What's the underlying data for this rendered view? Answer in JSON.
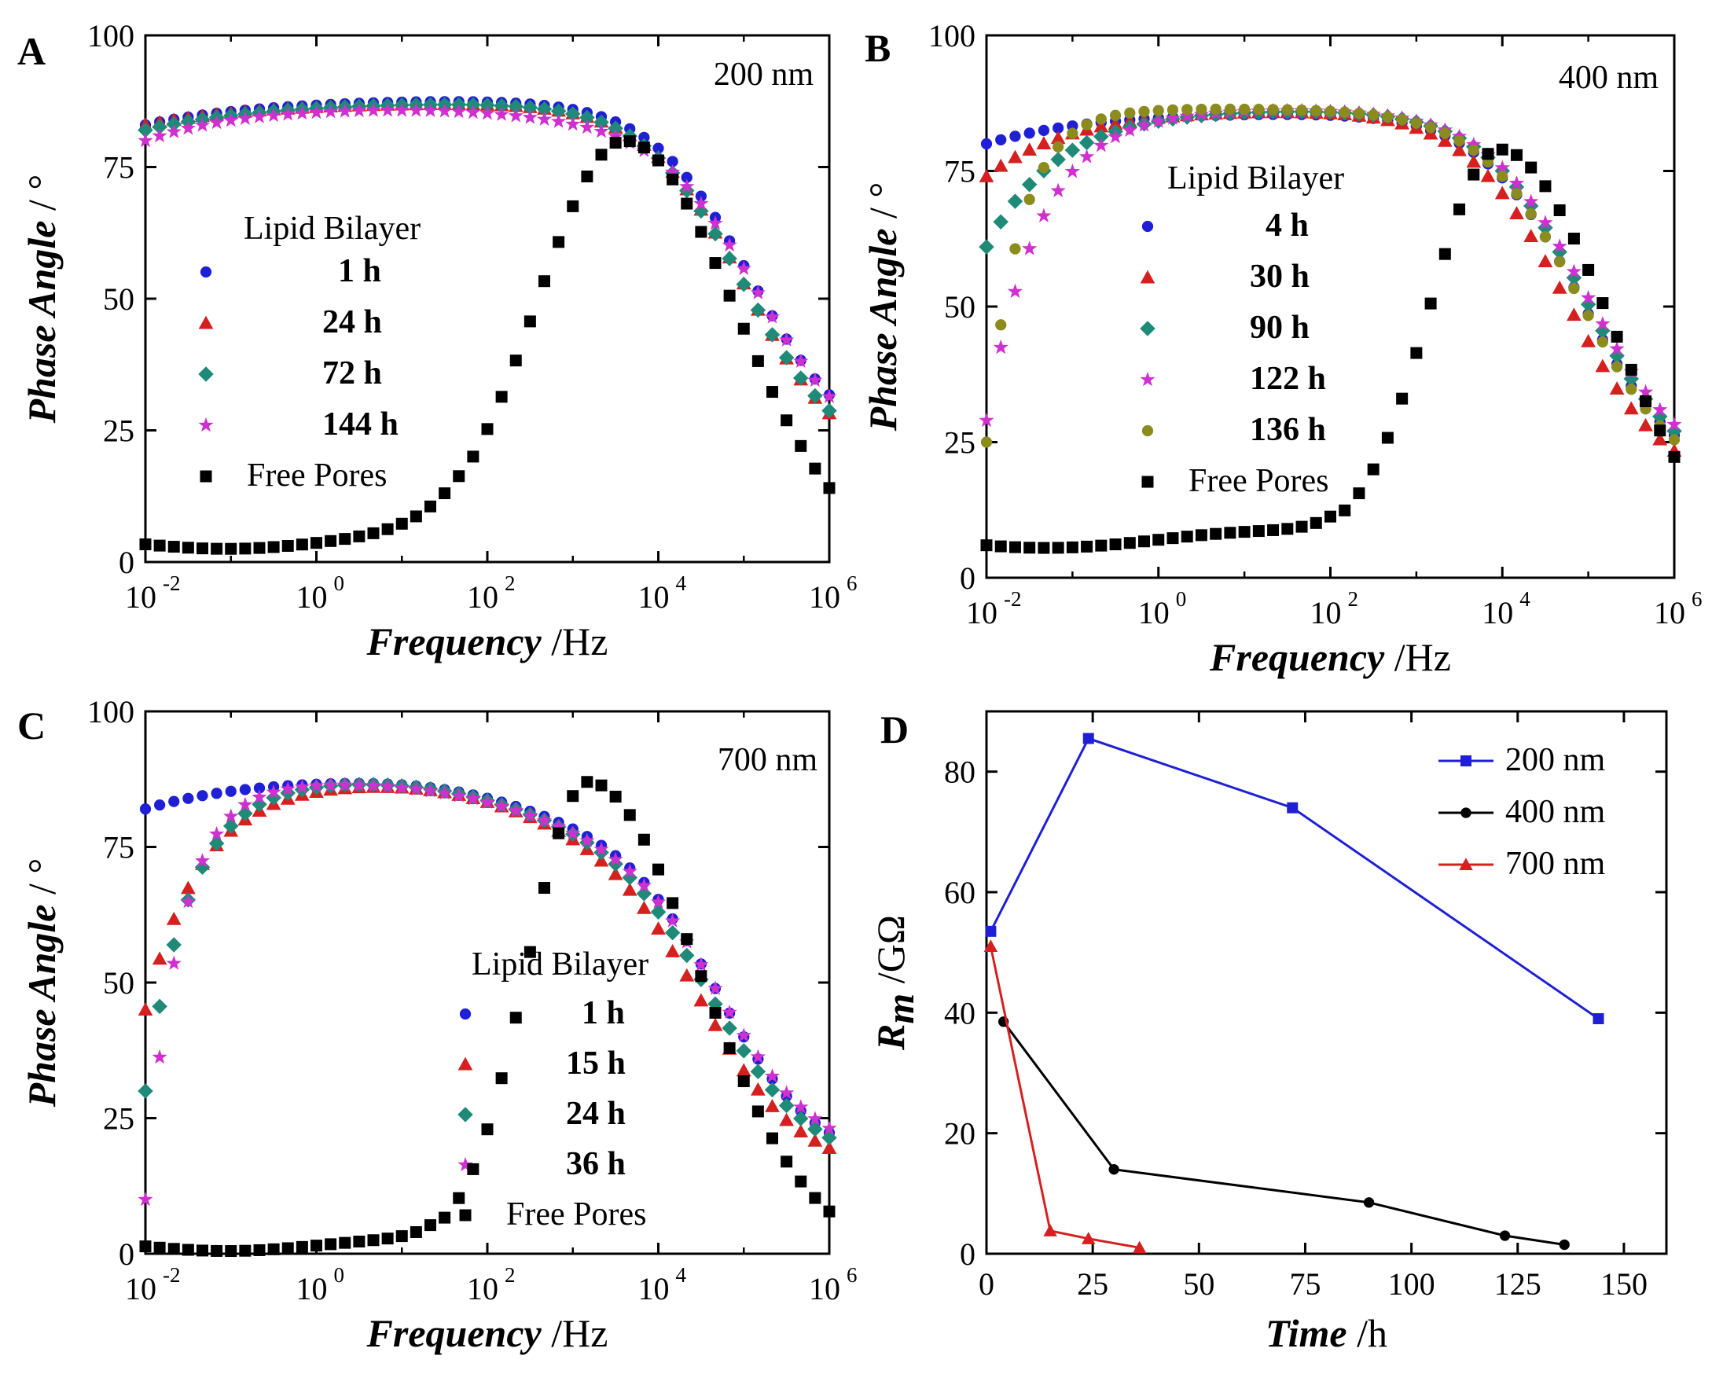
{
  "chart_data": [
    {
      "panel": "A",
      "type": "scatter",
      "annotation": "200 nm",
      "xscale": "log",
      "xlim": [
        0.01,
        1000000
      ],
      "ylim": [
        0,
        100
      ],
      "x_ticks": [
        {
          "base": "10",
          "exp": "-2"
        },
        {
          "base": "10",
          "exp": "0"
        },
        {
          "base": "10",
          "exp": "2"
        },
        {
          "base": "10",
          "exp": "4"
        },
        {
          "base": "10",
          "exp": "6"
        }
      ],
      "y_ticks": [
        "0",
        "25",
        "50",
        "75",
        "100"
      ],
      "xlabel": "Frequency",
      "xunit": " /Hz",
      "ylabel": "Phase Angle",
      "yunit": " / °",
      "legend_title": "Lipid Bilayer",
      "series": [
        {
          "name": "1 h",
          "color": "#1f1fd6",
          "marker": "circle",
          "plateau": 88,
          "low": 83,
          "lowRise": 0.7,
          "fc": 120000,
          "hi": 20,
          "flat": 0.92
        },
        {
          "name": "24 h",
          "color": "#d62020",
          "marker": "triangle",
          "plateau": 87.5,
          "low": 83,
          "lowRise": 0.7,
          "fc": 105000,
          "hi": 17,
          "flat": 0.92
        },
        {
          "name": "72 h",
          "color": "#1f8a78",
          "marker": "diamond",
          "plateau": 87.5,
          "low": 82,
          "lowRise": 0.7,
          "fc": 100000,
          "hi": 18,
          "flat": 0.92
        },
        {
          "name": "144 h",
          "color": "#d030d0",
          "marker": "star",
          "plateau": 86.5,
          "low": 80,
          "lowRise": 0.9,
          "fc": 140000,
          "hi": 19,
          "flat": 0.88
        },
        {
          "name": "Free Pores",
          "color": "#000000",
          "marker": "square",
          "type": "free",
          "peak": 80,
          "fpeak": 4000,
          "wl": 0.7,
          "wr": 0.55,
          "base": 3.5
        }
      ]
    },
    {
      "panel": "B",
      "type": "scatter",
      "annotation": "400 nm",
      "xscale": "log",
      "xlim": [
        0.01,
        1000000
      ],
      "ylim": [
        0,
        100
      ],
      "x_ticks": [
        {
          "base": "10",
          "exp": "-2"
        },
        {
          "base": "10",
          "exp": "0"
        },
        {
          "base": "10",
          "exp": "2"
        },
        {
          "base": "10",
          "exp": "4"
        },
        {
          "base": "10",
          "exp": "6"
        }
      ],
      "y_ticks": [
        "0",
        "25",
        "50",
        "75",
        "100"
      ],
      "xlabel": "Frequency",
      "xunit": " /Hz",
      "ylabel": "Phase Angle",
      "yunit": " / °",
      "legend_title": "Lipid Bilayer",
      "series": [
        {
          "name": "4 h",
          "color": "#1f1fd6",
          "marker": "circle",
          "plateau": 86,
          "low": 80,
          "lowRise": 0.8,
          "fc": 80000,
          "hi": 17,
          "flat": 0.92
        },
        {
          "name": "30 h",
          "color": "#d62020",
          "marker": "triangle",
          "plateau": 86.5,
          "low": 74,
          "lowRise": 1.0,
          "fc": 55000,
          "hi": 16,
          "flat": 0.92
        },
        {
          "name": "90 h",
          "color": "#1f8a78",
          "marker": "diamond",
          "plateau": 86.5,
          "low": 61,
          "lowRise": 1.2,
          "fc": 90000,
          "hi": 17,
          "flat": 0.92
        },
        {
          "name": "122 h",
          "color": "#d030d0",
          "marker": "star",
          "plateau": 86.5,
          "low": 29,
          "lowRise": 1.6,
          "fc": 95000,
          "hi": 18,
          "flat": 0.92
        },
        {
          "name": "136 h",
          "color": "#8c8c1e",
          "marker": "circle",
          "plateau": 86.5,
          "low": 25,
          "lowRise": 2.6,
          "fc": 80000,
          "hi": 16,
          "flat": 0.92
        },
        {
          "name": "Free Pores",
          "color": "#000000",
          "marker": "square",
          "type": "free",
          "peak": 79,
          "fpeak": 9000,
          "wl": 0.9,
          "wr": 0.55,
          "base": 7
        }
      ]
    },
    {
      "panel": "C",
      "type": "scatter",
      "annotation": "700 nm",
      "xscale": "log",
      "xlim": [
        0.01,
        1000000
      ],
      "ylim": [
        0,
        100
      ],
      "x_ticks": [
        {
          "base": "10",
          "exp": "-2"
        },
        {
          "base": "10",
          "exp": "0"
        },
        {
          "base": "10",
          "exp": "2"
        },
        {
          "base": "10",
          "exp": "4"
        },
        {
          "base": "10",
          "exp": "6"
        }
      ],
      "y_ticks": [
        "0",
        "25",
        "50",
        "75",
        "100"
      ],
      "xlabel": "Frequency",
      "xunit": " /Hz",
      "ylabel": "Phase Angle",
      "yunit": " / °",
      "legend_title": "Lipid Bilayer",
      "series": [
        {
          "name": "1 h",
          "color": "#1f1fd6",
          "marker": "circle",
          "plateau": 88,
          "low": 82,
          "lowRise": 0.8,
          "fc": 50000,
          "hi": 16,
          "flat": 0.55
        },
        {
          "name": "15 h",
          "color": "#d62020",
          "marker": "triangle",
          "plateau": 87.5,
          "low": 45,
          "lowRise": 1.5,
          "fc": 30000,
          "hi": 15,
          "flat": 0.55
        },
        {
          "name": "24 h",
          "color": "#1f8a78",
          "marker": "diamond",
          "plateau": 87.5,
          "low": 30,
          "lowRise": 1.9,
          "fc": 40000,
          "hi": 16,
          "flat": 0.55
        },
        {
          "name": "36 h",
          "color": "#d030d0",
          "marker": "star",
          "plateau": 87,
          "low": 10,
          "lowRise": 2.5,
          "fc": 50000,
          "hi": 17,
          "flat": 0.55
        },
        {
          "name": "Free Pores",
          "color": "#000000",
          "marker": "square",
          "type": "free",
          "peak": 87,
          "fpeak": 1500,
          "wl": 1.0,
          "wr": 0.55,
          "base": 1.5
        }
      ]
    },
    {
      "panel": "D",
      "type": "line",
      "xlim": [
        0,
        160
      ],
      "ylim": [
        0,
        90
      ],
      "x_ticks": [
        "0",
        "25",
        "50",
        "75",
        "100",
        "125",
        "150"
      ],
      "y_ticks": [
        "0",
        "20",
        "40",
        "60",
        "80"
      ],
      "xlabel": "Time",
      "xunit": " /h",
      "ylabel": "R",
      "ylabel_sub": "m",
      "yunit": " /GΩ",
      "series": [
        {
          "name": "200 nm",
          "color": "#1f1fd6",
          "marker": "square",
          "x": [
            1,
            24,
            72,
            144
          ],
          "y": [
            53.5,
            85.5,
            74,
            39
          ]
        },
        {
          "name": "400 nm",
          "color": "#000000",
          "marker": "circle",
          "x": [
            4,
            30,
            90,
            122,
            136
          ],
          "y": [
            38.5,
            14,
            8.5,
            3,
            1.5
          ]
        },
        {
          "name": "700 nm",
          "color": "#d62020",
          "marker": "triangle",
          "x": [
            1,
            15,
            24,
            36
          ],
          "y": [
            51,
            3.8,
            2.5,
            1
          ]
        }
      ]
    }
  ]
}
